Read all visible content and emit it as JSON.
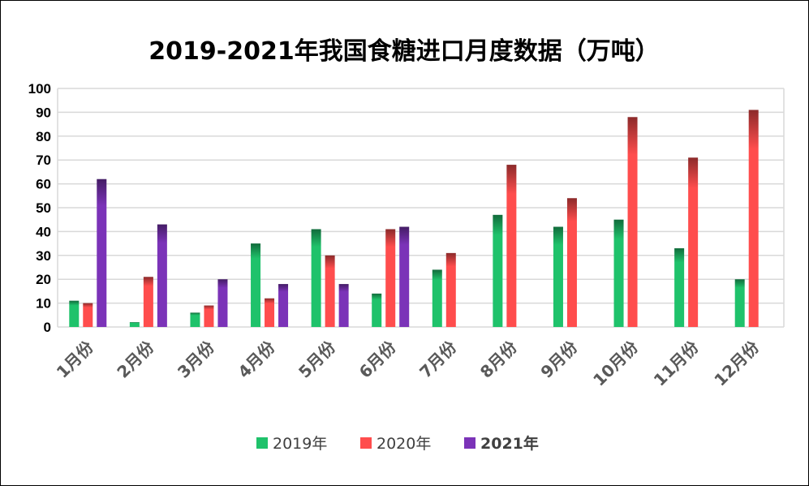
{
  "chart_data": {
    "type": "bar",
    "title": "2019-2021年我国食糖进口月度数据（万吨）",
    "xlabel": "",
    "ylabel": "",
    "ylim": [
      0,
      100
    ],
    "yticks": [
      0,
      10,
      20,
      30,
      40,
      50,
      60,
      70,
      80,
      90,
      100
    ],
    "grid": true,
    "legend_position": "bottom",
    "categories": [
      "1月份",
      "2月份",
      "3月份",
      "4月份",
      "5月份",
      "6月份",
      "7月份",
      "8月份",
      "9月份",
      "10月份",
      "11月份",
      "12月份"
    ],
    "series": [
      {
        "name": "2019年",
        "color": "#1fc26b",
        "values": [
          11,
          2,
          6,
          35,
          41,
          14,
          24,
          47,
          42,
          45,
          33,
          20
        ]
      },
      {
        "name": "2020年",
        "color": "#ff4d4d",
        "values": [
          10,
          21,
          9,
          12,
          30,
          41,
          31,
          68,
          54,
          88,
          71,
          91
        ]
      },
      {
        "name": "2021年",
        "color": "#7b33b8",
        "values": [
          62,
          43,
          20,
          18,
          18,
          42,
          null,
          null,
          null,
          null,
          null,
          null
        ]
      }
    ]
  }
}
